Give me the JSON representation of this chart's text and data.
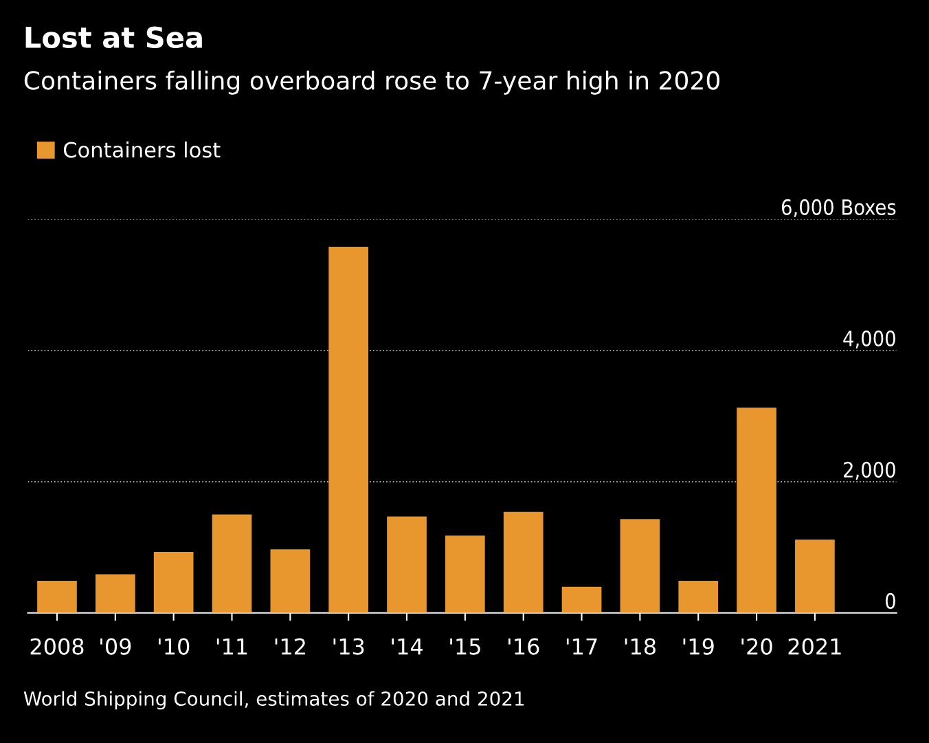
{
  "chart_data": {
    "type": "bar",
    "title": "Lost at Sea",
    "subtitle": "Containers falling overboard rose to 7-year high in 2020",
    "categories": [
      "2008",
      "'09",
      "'10",
      "'11",
      "'12",
      "'13",
      "'14",
      "'15",
      "'16",
      "'17",
      "'18",
      "'19",
      "'20",
      "2021"
    ],
    "series": [
      {
        "name": "Containers lost",
        "color": "#e8962e",
        "values": [
          490,
          590,
          930,
          1500,
          970,
          5580,
          1470,
          1180,
          1540,
          400,
          1430,
          490,
          3130,
          1120
        ]
      }
    ],
    "ylim": [
      0,
      6000
    ],
    "yticks": [
      0,
      {
        "value": 2000,
        "label": "2,000"
      },
      {
        "value": 4000,
        "label": "4,000"
      },
      {
        "value": 6000,
        "label": "6,000 Boxes"
      }
    ],
    "grid": "y",
    "legend": "top left",
    "annotations": [
      "World Shipping Council, estimates of 2020 and 2021"
    ]
  }
}
